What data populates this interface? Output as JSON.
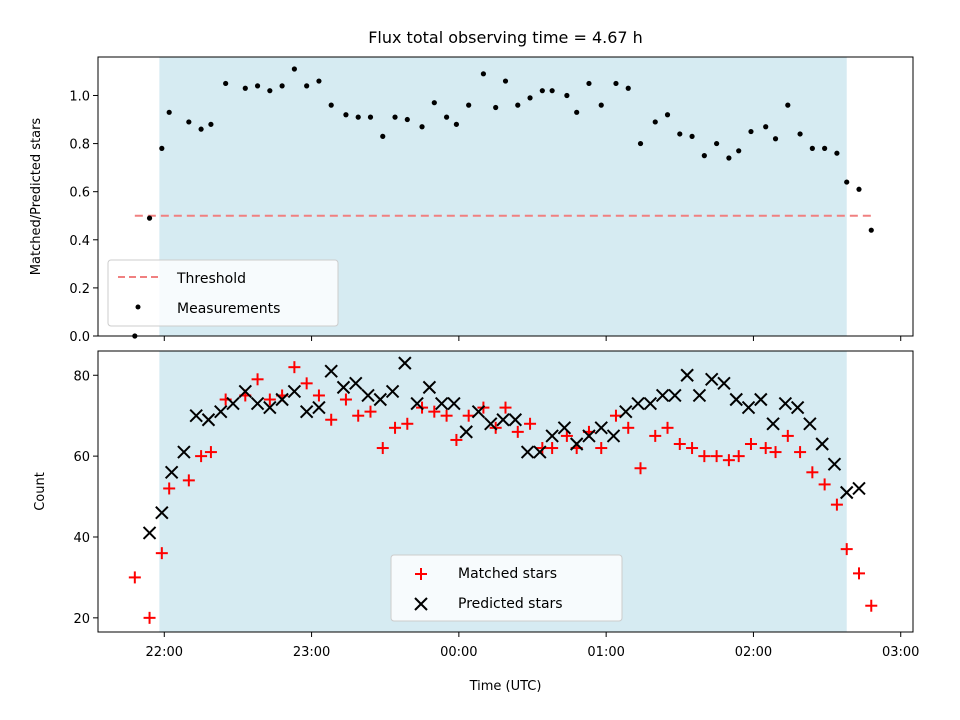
{
  "chart_data": [
    {
      "type": "scatter",
      "title": "Flux total observing time = 4.67 h",
      "xlabel": "",
      "ylabel": "Matched/Predicted stars",
      "xlim": [
        "21:33",
        "03:05"
      ],
      "ylim": [
        0.0,
        1.16
      ],
      "yticks": [
        "0.0",
        "0.2",
        "0.4",
        "0.6",
        "0.8",
        "1.0"
      ],
      "ytick_values": [
        0.0,
        0.2,
        0.4,
        0.6,
        0.8,
        1.0
      ],
      "xtick_times": [
        "22:00",
        "23:00",
        "00:00",
        "01:00",
        "02:00",
        "03:00"
      ],
      "shaded_span": {
        "start": "21:58",
        "end": "02:38",
        "color": "#add8e6"
      },
      "legend_position": "lower left",
      "legend": [
        {
          "label": "Threshold",
          "color": "#f08080",
          "style": "dashed-line"
        },
        {
          "label": "Measurements",
          "color": "#000000",
          "style": "dot"
        }
      ],
      "series": [
        {
          "name": "Threshold",
          "kind": "line",
          "color": "#f08080",
          "x": [
            "21:48",
            "02:48"
          ],
          "y": [
            0.5,
            0.5
          ]
        },
        {
          "name": "Measurements",
          "kind": "scatter",
          "color": "#000000",
          "x": [
            "21:48",
            "21:54",
            "21:59",
            "22:02",
            "22:10",
            "22:15",
            "22:19",
            "22:25",
            "22:33",
            "22:38",
            "22:43",
            "22:48",
            "22:53",
            "22:58",
            "23:03",
            "23:08",
            "23:14",
            "23:19",
            "23:24",
            "23:29",
            "23:34",
            "23:39",
            "23:45",
            "23:50",
            "23:55",
            "23:59",
            "00:04",
            "00:10",
            "00:15",
            "00:19",
            "00:24",
            "00:29",
            "00:34",
            "00:38",
            "00:44",
            "00:48",
            "00:53",
            "00:58",
            "01:04",
            "01:09",
            "01:14",
            "01:20",
            "01:25",
            "01:30",
            "01:35",
            "01:40",
            "01:45",
            "01:50",
            "01:54",
            "01:59",
            "02:05",
            "02:09",
            "02:14",
            "02:19",
            "02:24",
            "02:29",
            "02:34",
            "02:38",
            "02:43",
            "02:48"
          ],
          "y": [
            0.0,
            0.49,
            0.78,
            0.93,
            0.89,
            0.86,
            0.88,
            1.05,
            1.03,
            1.04,
            1.02,
            1.04,
            1.11,
            1.04,
            1.06,
            0.96,
            0.92,
            0.91,
            0.91,
            0.83,
            0.91,
            0.9,
            0.87,
            0.97,
            0.91,
            0.88,
            0.96,
            1.09,
            0.95,
            1.06,
            0.96,
            0.99,
            1.02,
            1.02,
            1.0,
            0.93,
            1.05,
            0.96,
            1.05,
            1.03,
            0.8,
            0.89,
            0.92,
            0.84,
            0.83,
            0.75,
            0.8,
            0.74,
            0.77,
            0.85,
            0.87,
            0.82,
            0.96,
            0.84,
            0.78,
            0.78,
            0.76,
            0.64,
            0.61,
            0.44
          ]
        }
      ]
    },
    {
      "type": "scatter",
      "title": "",
      "xlabel": "Time (UTC)",
      "ylabel": "Count",
      "xlim": [
        "21:33",
        "03:05"
      ],
      "ylim": [
        16.5,
        86
      ],
      "yticks": [
        "20",
        "40",
        "60",
        "80"
      ],
      "ytick_values": [
        20,
        40,
        60,
        80
      ],
      "xticks": [
        "22:00",
        "23:00",
        "00:00",
        "01:00",
        "02:00",
        "03:00"
      ],
      "xtick_times": [
        "22:00",
        "23:00",
        "00:00",
        "01:00",
        "02:00",
        "03:00"
      ],
      "shaded_span": {
        "start": "21:58",
        "end": "02:38",
        "color": "#add8e6"
      },
      "legend_position": "lower center",
      "legend": [
        {
          "label": "Matched stars",
          "color": "#ff0000",
          "style": "plus"
        },
        {
          "label": "Predicted stars",
          "color": "#000000",
          "style": "x"
        }
      ],
      "series": [
        {
          "name": "Matched stars",
          "kind": "plus",
          "color": "#ff0000",
          "x": [
            "21:48",
            "21:54",
            "21:59",
            "22:02",
            "22:10",
            "22:15",
            "22:19",
            "22:25",
            "22:33",
            "22:38",
            "22:43",
            "22:48",
            "22:53",
            "22:58",
            "23:03",
            "23:08",
            "23:14",
            "23:19",
            "23:24",
            "23:29",
            "23:34",
            "23:39",
            "23:45",
            "23:50",
            "23:55",
            "23:59",
            "00:04",
            "00:10",
            "00:15",
            "00:19",
            "00:24",
            "00:29",
            "00:34",
            "00:38",
            "00:44",
            "00:48",
            "00:53",
            "00:58",
            "01:04",
            "01:09",
            "01:14",
            "01:20",
            "01:25",
            "01:30",
            "01:35",
            "01:40",
            "01:45",
            "01:50",
            "01:54",
            "01:59",
            "02:05",
            "02:09",
            "02:14",
            "02:19",
            "02:24",
            "02:29",
            "02:34",
            "02:38",
            "02:43",
            "02:48"
          ],
          "y": [
            30,
            20,
            36,
            52,
            54,
            60,
            61,
            74,
            75,
            79,
            74,
            75,
            82,
            78,
            75,
            69,
            74,
            70,
            71,
            62,
            67,
            68,
            72,
            71,
            70,
            64,
            70,
            72,
            67,
            72,
            66,
            68,
            62,
            62,
            65,
            62,
            66,
            62,
            70,
            67,
            57,
            65,
            67,
            63,
            62,
            60,
            60,
            59,
            60,
            63,
            62,
            61,
            65,
            61,
            56,
            53,
            48,
            37,
            31,
            23
          ]
        },
        {
          "name": "Predicted stars",
          "kind": "x",
          "color": "#000000",
          "x": [
            "21:54",
            "21:59",
            "22:03",
            "22:08",
            "22:13",
            "22:18",
            "22:23",
            "22:28",
            "22:33",
            "22:38",
            "22:43",
            "22:48",
            "22:53",
            "22:58",
            "23:03",
            "23:08",
            "23:13",
            "23:18",
            "23:23",
            "23:28",
            "23:33",
            "23:38",
            "23:43",
            "23:48",
            "23:53",
            "23:58",
            "00:03",
            "00:08",
            "00:13",
            "00:18",
            "00:23",
            "00:28",
            "00:33",
            "00:38",
            "00:43",
            "00:48",
            "00:53",
            "00:58",
            "01:03",
            "01:08",
            "01:13",
            "01:18",
            "01:23",
            "01:28",
            "01:33",
            "01:38",
            "01:43",
            "01:48",
            "01:53",
            "01:58",
            "02:03",
            "02:08",
            "02:13",
            "02:18",
            "02:23",
            "02:28",
            "02:33",
            "02:38",
            "02:43"
          ],
          "y": [
            41,
            46,
            56,
            61,
            70,
            69,
            71,
            73,
            76,
            73,
            72,
            74,
            76,
            71,
            72,
            81,
            77,
            78,
            75,
            74,
            76,
            83,
            73,
            77,
            73,
            73,
            66,
            71,
            68,
            69,
            69,
            61,
            61,
            65,
            67,
            63,
            65,
            67,
            65,
            71,
            73,
            73,
            75,
            75,
            80,
            75,
            79,
            78,
            74,
            72,
            74,
            68,
            73,
            72,
            68,
            63,
            58,
            51,
            52
          ]
        }
      ]
    }
  ]
}
